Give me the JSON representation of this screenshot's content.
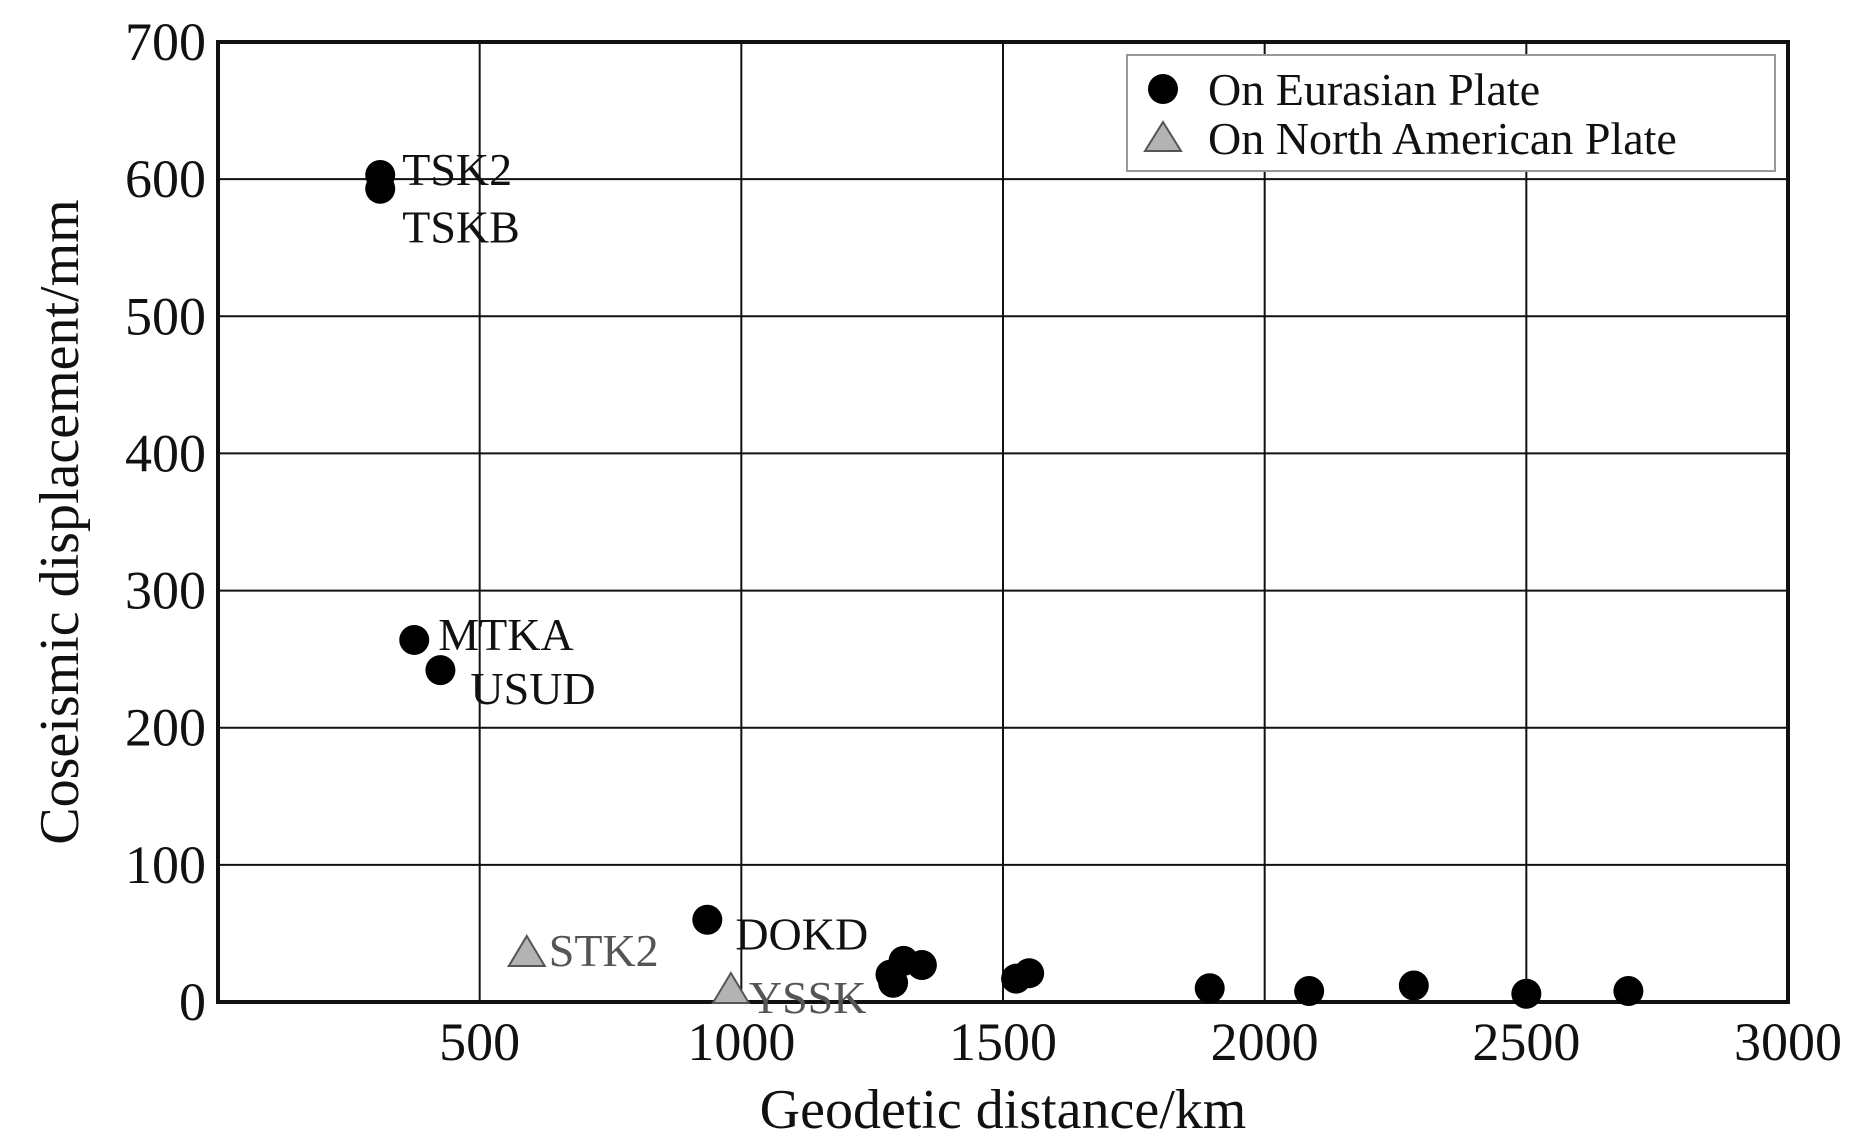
{
  "chart_data": {
    "type": "scatter",
    "xlabel": "Geodetic distance/km",
    "ylabel": "Coseismic displacement/mm",
    "xlim": [
      0,
      3000
    ],
    "ylim": [
      0,
      700
    ],
    "x_ticks": [
      500,
      1000,
      1500,
      2000,
      2500,
      3000
    ],
    "y_ticks": [
      0,
      100,
      200,
      300,
      400,
      500,
      600,
      700
    ],
    "grid": true,
    "legend_position": "top-right",
    "colors": {
      "eurasian": "#000000",
      "north_american": "#b3b3b3",
      "north_american_label": "#555555"
    },
    "series": [
      {
        "name": "On Eurasian Plate",
        "marker": "circle",
        "points": [
          {
            "x": 310,
            "y": 603,
            "label": "TSK2"
          },
          {
            "x": 310,
            "y": 593,
            "label": "TSKB"
          },
          {
            "x": 375,
            "y": 264,
            "label": "MTKA"
          },
          {
            "x": 425,
            "y": 242,
            "label": "USUD"
          },
          {
            "x": 935,
            "y": 60,
            "label": "DOKD"
          },
          {
            "x": 1285,
            "y": 20
          },
          {
            "x": 1290,
            "y": 14
          },
          {
            "x": 1310,
            "y": 30
          },
          {
            "x": 1345,
            "y": 27
          },
          {
            "x": 1525,
            "y": 17
          },
          {
            "x": 1550,
            "y": 21
          },
          {
            "x": 1895,
            "y": 10
          },
          {
            "x": 2085,
            "y": 8
          },
          {
            "x": 2285,
            "y": 12
          },
          {
            "x": 2500,
            "y": 6
          },
          {
            "x": 2695,
            "y": 8
          }
        ]
      },
      {
        "name": "On North American Plate",
        "marker": "triangle",
        "points": [
          {
            "x": 590,
            "y": 35,
            "label": "STK2"
          },
          {
            "x": 980,
            "y": 8,
            "label": "YSSK"
          }
        ]
      }
    ]
  }
}
